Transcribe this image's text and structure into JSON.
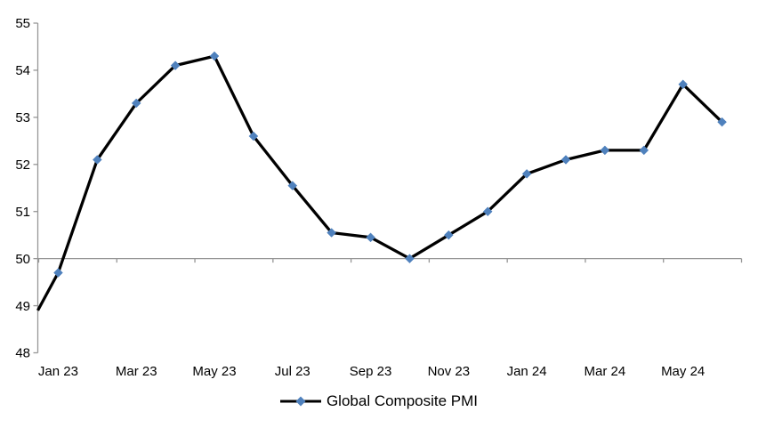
{
  "chart_data": {
    "type": "line",
    "title": "",
    "categories": [
      "Jan 23",
      "Feb 23",
      "Mar 23",
      "Apr 23",
      "May 23",
      "Jun 23",
      "Jul 23",
      "Aug 23",
      "Sep 23",
      "Oct 23",
      "Nov 23",
      "Dec 23",
      "Jan 24",
      "Feb 24",
      "Mar 24",
      "Apr 24",
      "May 24",
      "Jun 24"
    ],
    "series": [
      {
        "name": "Global Composite PMI",
        "values": [
          49.7,
          52.1,
          53.3,
          54.1,
          54.3,
          52.6,
          51.55,
          50.55,
          50.45,
          50.0,
          50.5,
          51.0,
          51.8,
          52.1,
          52.3,
          52.3,
          53.7,
          52.9
        ]
      }
    ],
    "edge_leadin_value": 48.9,
    "x_tick_labels": [
      "Jan 23",
      "Mar 23",
      "May 23",
      "Jul 23",
      "Sep 23",
      "Nov 23",
      "Jan 24",
      "Mar 24",
      "May 24"
    ],
    "x_label_every_n_categories": 2,
    "y_ticks": [
      48,
      49,
      50,
      51,
      52,
      53,
      54,
      55
    ],
    "ylim": [
      48,
      55
    ],
    "axis_crosses_at": 50,
    "gridlines": false,
    "legend_position": "bottom",
    "marker_shape": "diamond",
    "colors": {
      "marker": "#4F81BD",
      "line": "#000000",
      "axis": "#969696",
      "text": "#000000"
    }
  }
}
